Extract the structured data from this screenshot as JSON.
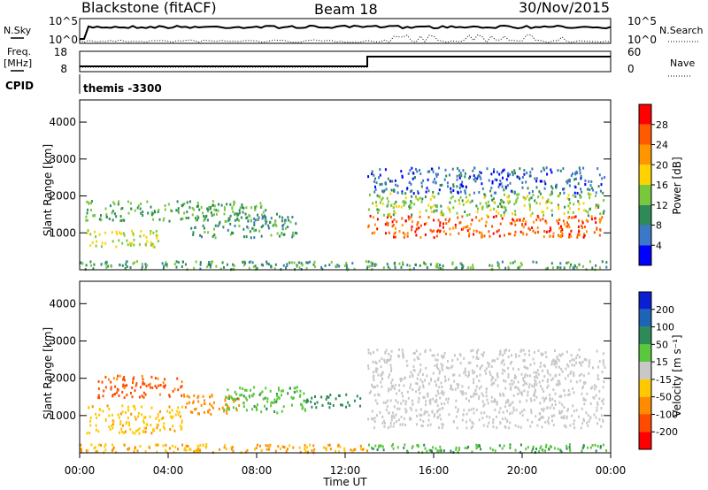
{
  "header": {
    "station": "Blackstone (fitACF)",
    "beam": "Beam 18",
    "date": "30/Nov/2015"
  },
  "top_panels": {
    "nsky_label": "N.Sky",
    "nsky_ticks": [
      "10^5",
      "10^0"
    ],
    "nsearch_label": "N.Search",
    "nsearch_ticks": [
      "10^5",
      "10^0"
    ],
    "freq_label": "Freq.",
    "freq_unit": "[MHz]",
    "freq_ticks": [
      "18",
      "8"
    ],
    "nave_label": "Nave",
    "nave_ticks": [
      "60",
      "0"
    ],
    "cpid_label": "CPID",
    "cpid_value": "themis -3300"
  },
  "colorbars": {
    "power": {
      "label": "Power [dB]",
      "ticks": [
        "28",
        "24",
        "20",
        "16",
        "12",
        "8",
        "4"
      ],
      "colors": [
        "#ff0000",
        "#ff5a00",
        "#ff9600",
        "#ffd200",
        "#78c83c",
        "#2e8b57",
        "#3c78c8",
        "#0000ff"
      ]
    },
    "velocity": {
      "label": "Velocity [m s⁻¹]",
      "ticks": [
        "200",
        "100",
        "50",
        "15",
        "-15",
        "-50",
        "-100",
        "-200"
      ],
      "colors": [
        "#0a1ed2",
        "#1e64b4",
        "#2e8b57",
        "#5ac83c",
        "#c8c8c8",
        "#ffc800",
        "#ff8c00",
        "#ff4b00",
        "#ff0000"
      ]
    }
  },
  "chart_data": [
    {
      "type": "heatmap",
      "name": "power",
      "ylabel": "Slant Range [km]",
      "xlabel": "",
      "yticks": [
        "1000",
        "2000",
        "3000",
        "4000"
      ],
      "ylim": [
        0,
        4600
      ],
      "xlim": [
        "00:00",
        "24:00"
      ],
      "value_label": "Power [dB]",
      "regions": [
        {
          "x": [
            0.3,
            3.6
          ],
          "y": [
            650,
            1100
          ],
          "value": 16
        },
        {
          "x": [
            0.2,
            8.4
          ],
          "y": [
            1350,
            1900
          ],
          "value": 12
        },
        {
          "x": [
            5.0,
            9.8
          ],
          "y": [
            900,
            1550
          ],
          "value": 10
        },
        {
          "x": [
            13.0,
            23.7
          ],
          "y": [
            900,
            1500
          ],
          "value": 26
        },
        {
          "x": [
            13.0,
            23.7
          ],
          "y": [
            1500,
            2100
          ],
          "value": 14
        },
        {
          "x": [
            13.0,
            23.7
          ],
          "y": [
            2100,
            2800
          ],
          "value": 6
        }
      ]
    },
    {
      "type": "heatmap",
      "name": "velocity",
      "ylabel": "Slant Range [km]",
      "xlabel": "Time UT",
      "yticks": [
        "1000",
        "2000",
        "3000",
        "4000"
      ],
      "ylim": [
        0,
        4600
      ],
      "xlim": [
        "00:00",
        "24:00"
      ],
      "xticks": [
        "00:00",
        "04:00",
        "08:00",
        "12:00",
        "16:00",
        "20:00",
        "00:00"
      ],
      "value_label": "Velocity [m s⁻¹]",
      "regions": [
        {
          "x": [
            0.3,
            4.6
          ],
          "y": [
            550,
            1300
          ],
          "value": -40
        },
        {
          "x": [
            0.8,
            4.6
          ],
          "y": [
            1500,
            2100
          ],
          "value": -110
        },
        {
          "x": [
            4.6,
            7.2
          ],
          "y": [
            1050,
            1600
          ],
          "value": -70
        },
        {
          "x": [
            6.4,
            10.2
          ],
          "y": [
            1100,
            1800
          ],
          "value": 40
        },
        {
          "x": [
            10.2,
            12.8
          ],
          "y": [
            1250,
            1600
          ],
          "value": 70
        },
        {
          "x": [
            13.0,
            23.7
          ],
          "y": [
            700,
            2800
          ],
          "value": 0
        }
      ]
    }
  ]
}
